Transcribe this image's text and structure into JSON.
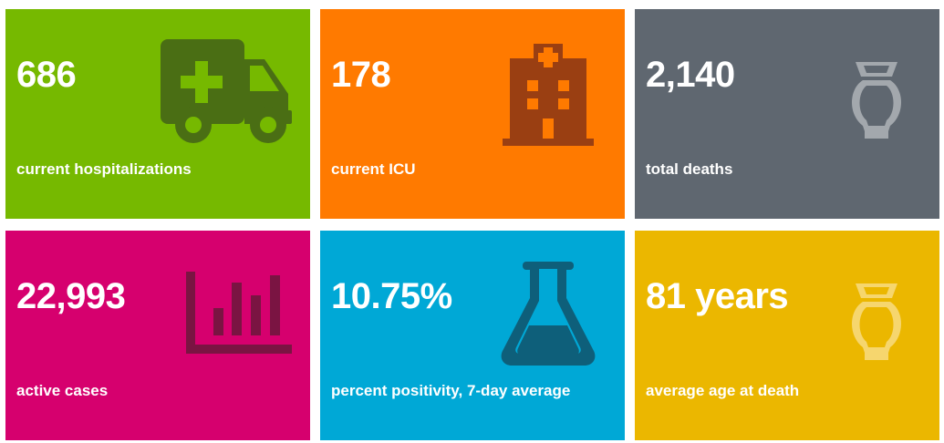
{
  "tiles": [
    {
      "value": "686",
      "label": "current hospitalizations",
      "icon": "ambulance-icon",
      "color": "#76b900",
      "icon_color": "#4a6e14"
    },
    {
      "value": "178",
      "label": "current ICU",
      "icon": "hospital-icon",
      "color": "#ff7a00",
      "icon_color": "#9a3f12"
    },
    {
      "value": "2,140",
      "label": "total deaths",
      "icon": "urn-icon",
      "color": "#5f6770",
      "icon_color": "#a3a8ad"
    },
    {
      "value": "22,993",
      "label": "active cases",
      "icon": "bar-chart-icon",
      "color": "#d6006e",
      "icon_color": "#7a1442"
    },
    {
      "value": "10.75%",
      "label": "percent positivity, 7-day average",
      "icon": "flask-icon",
      "color": "#00a8d6",
      "icon_color": "#0e5f7a"
    },
    {
      "value": "81 years",
      "label": "average age at death",
      "icon": "urn-icon",
      "color": "#ebb700",
      "icon_color": "#f6d66e"
    }
  ]
}
